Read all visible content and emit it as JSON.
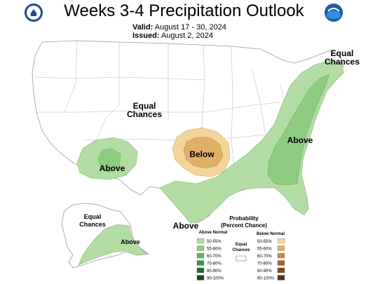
{
  "header": {
    "title": "Weeks 3-4 Precipitation Outlook",
    "valid_label": "Valid:",
    "valid_value": "August 17 - 30, 2024",
    "issued_label": "Issued:",
    "issued_value": "August 2, 2024"
  },
  "map_labels": {
    "equal_chances_central": [
      "Equal",
      "Chances"
    ],
    "equal_chances_ne": [
      "Equal",
      "Chances"
    ],
    "equal_chances_alaska": [
      "Equal",
      "Chances"
    ],
    "above_sw": "Above",
    "above_east": "Above",
    "above_gulf": "Above",
    "above_alaska": "Above",
    "below_central": "Below"
  },
  "legend": {
    "title_line1": "Probability",
    "title_line2": "(Percent Chance)",
    "above_header": "Above Normal",
    "below_header": "Below Normal",
    "equal_label_1": "Equal",
    "equal_label_2": "Chances",
    "rows": [
      "50-55%",
      "55-60%",
      "60-70%",
      "70-80%",
      "80-90%",
      "90-100%"
    ],
    "above_colors": [
      "#b3dca5",
      "#8fcc82",
      "#5db556",
      "#3a9644",
      "#246a30",
      "#174920"
    ],
    "below_colors": [
      "#f3d59a",
      "#e0b066",
      "#c8893d",
      "#a56527",
      "#7e4820",
      "#5a3216"
    ]
  },
  "colors": {
    "above_light": "#b3dca5",
    "above_mid": "#8fcc82",
    "below_light": "#f3d59a",
    "below_mid": "#e0b066",
    "land": "#ffffff",
    "border": "#9a9a9a"
  }
}
